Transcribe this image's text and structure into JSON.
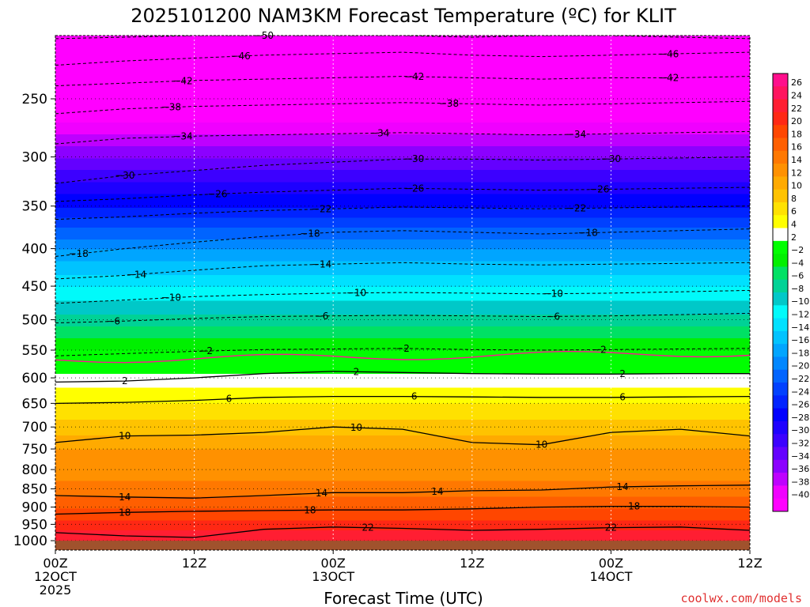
{
  "chart_data": {
    "type": "heatmap",
    "title": "2025101200 NAM3KM Forecast Temperature (ºC) for KLIT",
    "xlabel": "Forecast Time (UTC)",
    "ylabel": "",
    "credit": "coolwx.com/models",
    "y_axis": {
      "unit": "hPa",
      "scale": "log-pressure",
      "range": [
        205,
        1030
      ],
      "ticks": [
        250,
        300,
        350,
        400,
        450,
        500,
        550,
        600,
        650,
        700,
        750,
        800,
        850,
        900,
        950,
        1000
      ]
    },
    "x_axis": {
      "unit": "forecast hours",
      "range": [
        0,
        60
      ],
      "ticks": [
        {
          "h": 0,
          "line1": "00Z",
          "line2": "12OCT",
          "line3": "2025"
        },
        {
          "h": 12,
          "line1": "12Z",
          "line2": "",
          "line3": ""
        },
        {
          "h": 24,
          "line1": "00Z",
          "line2": "13OCT",
          "line3": ""
        },
        {
          "h": 36,
          "line1": "12Z",
          "line2": "",
          "line3": ""
        },
        {
          "h": 48,
          "line1": "00Z",
          "line2": "14OCT",
          "line3": ""
        },
        {
          "h": 60,
          "line1": "12Z",
          "line2": "",
          "line3": ""
        }
      ]
    },
    "surface_pressure": 1000,
    "freezing_level_hpa": 567,
    "levels_hpa": [
      205,
      250,
      300,
      350,
      400,
      450,
      500,
      550,
      600,
      650,
      700,
      750,
      800,
      850,
      900,
      950,
      1000,
      1030
    ],
    "temperature_profile_c": [
      -52,
      -44,
      -34,
      -26,
      -18,
      -12,
      -7,
      -2,
      3,
      6,
      9,
      12,
      13,
      15,
      18,
      21,
      24,
      26
    ],
    "colorbar": {
      "levels": [
        26,
        24,
        22,
        20,
        18,
        16,
        14,
        12,
        10,
        8,
        6,
        4,
        2,
        -2,
        -4,
        -6,
        -8,
        -10,
        -12,
        -14,
        -16,
        -18,
        -20,
        -22,
        -24,
        -26,
        -28,
        -30,
        -32,
        -34,
        -36,
        -38,
        -40
      ],
      "colors": [
        "#ff0f8c",
        "#ff1460",
        "#ff1e32",
        "#ff2814",
        "#ff4600",
        "#ff5f00",
        "#ff7800",
        "#ff9100",
        "#ffaa00",
        "#ffc300",
        "#ffe100",
        "#ffff00",
        "#ffffff",
        "#00ff00",
        "#00f000",
        "#00e164",
        "#00d296",
        "#00c8c8",
        "#00fafa",
        "#00e1ff",
        "#00c3ff",
        "#00a5ff",
        "#0087ff",
        "#0064ff",
        "#0041ff",
        "#0023ff",
        "#0000ff",
        "#1e00ff",
        "#3c00ff",
        "#6400ff",
        "#8c00ff",
        "#be00ff",
        "#f000ff",
        "#ff00ff"
      ]
    },
    "contours_dashed": [
      {
        "value": -50,
        "label_hours": [
          18
        ],
        "pressures": [
          207,
          206,
          205,
          205,
          205,
          205,
          206,
          205,
          205,
          206,
          207
        ]
      },
      {
        "value": -46,
        "label_hours": [
          16,
          53
        ],
        "pressures": [
          225,
          222,
          220,
          218,
          217,
          216,
          218,
          219,
          218,
          217,
          216
        ]
      },
      {
        "value": -42,
        "label_hours": [
          11,
          31,
          53
        ],
        "pressures": [
          240,
          238,
          236,
          235,
          234,
          233,
          234,
          235,
          234,
          234,
          233
        ]
      },
      {
        "value": -38,
        "label_hours": [
          10,
          34
        ],
        "pressures": [
          262,
          258,
          256,
          255,
          254,
          253,
          254,
          255,
          254,
          253,
          252
        ]
      },
      {
        "value": -34,
        "label_hours": [
          11,
          28,
          45
        ],
        "pressures": [
          288,
          283,
          281,
          280,
          279,
          278,
          279,
          280,
          279,
          278,
          277
        ]
      },
      {
        "value": -30,
        "label_hours": [
          6,
          31,
          48
        ],
        "pressures": [
          326,
          318,
          313,
          308,
          305,
          302,
          302,
          303,
          302,
          301,
          300
        ]
      },
      {
        "value": -26,
        "label_hours": [
          14,
          31,
          47
        ],
        "pressures": [
          345,
          342,
          338,
          335,
          333,
          331,
          332,
          333,
          332,
          331,
          330
        ]
      },
      {
        "value": -22,
        "label_hours": [
          23,
          45
        ],
        "pressures": [
          365,
          362,
          358,
          355,
          353,
          351,
          352,
          353,
          352,
          351,
          350
        ]
      },
      {
        "value": -18,
        "label_hours": [
          2,
          22,
          46
        ],
        "pressures": [
          410,
          400,
          392,
          385,
          380,
          378,
          380,
          382,
          380,
          378,
          376
        ]
      },
      {
        "value": -14,
        "label_hours": [
          7,
          23
        ],
        "pressures": [
          440,
          435,
          428,
          422,
          420,
          418,
          420,
          421,
          420,
          419,
          418
        ]
      },
      {
        "value": -10,
        "label_hours": [
          10,
          26,
          43
        ],
        "pressures": [
          475,
          470,
          465,
          462,
          460,
          459,
          460,
          461,
          460,
          458,
          456
        ]
      },
      {
        "value": -6,
        "label_hours": [
          5,
          23,
          43
        ],
        "pressures": [
          505,
          502,
          498,
          495,
          494,
          493,
          494,
          495,
          494,
          492,
          490
        ]
      },
      {
        "value": -2,
        "label_hours": [
          13,
          30,
          47
        ],
        "pressures": [
          560,
          556,
          552,
          549,
          548,
          547,
          549,
          550,
          549,
          548,
          547
        ]
      }
    ],
    "contours_solid": [
      {
        "value": 2,
        "label_hours": [
          6,
          26,
          49
        ],
        "pressures": [
          608,
          606,
          600,
          592,
          588,
          590,
          592,
          593,
          593,
          592,
          592
        ]
      },
      {
        "value": 6,
        "label_hours": [
          15,
          31,
          49
        ],
        "pressures": [
          650,
          648,
          644,
          638,
          636,
          636,
          637,
          638,
          638,
          637,
          636
        ]
      },
      {
        "value": 10,
        "label_hours": [
          6,
          26,
          42
        ],
        "pressures": [
          735,
          720,
          718,
          712,
          700,
          705,
          735,
          740,
          712,
          705,
          720
        ]
      },
      {
        "value": 14,
        "label_hours": [
          6,
          23,
          33,
          49
        ],
        "pressures": [
          868,
          872,
          875,
          868,
          860,
          860,
          855,
          853,
          845,
          842,
          840
        ]
      },
      {
        "value": 18,
        "label_hours": [
          6,
          22,
          50
        ],
        "pressures": [
          920,
          915,
          912,
          910,
          908,
          908,
          905,
          900,
          898,
          898,
          900
        ]
      },
      {
        "value": 22,
        "label_hours": [
          27,
          48
        ],
        "pressures": [
          975,
          985,
          990,
          965,
          958,
          962,
          968,
          965,
          960,
          958,
          968
        ]
      }
    ]
  }
}
